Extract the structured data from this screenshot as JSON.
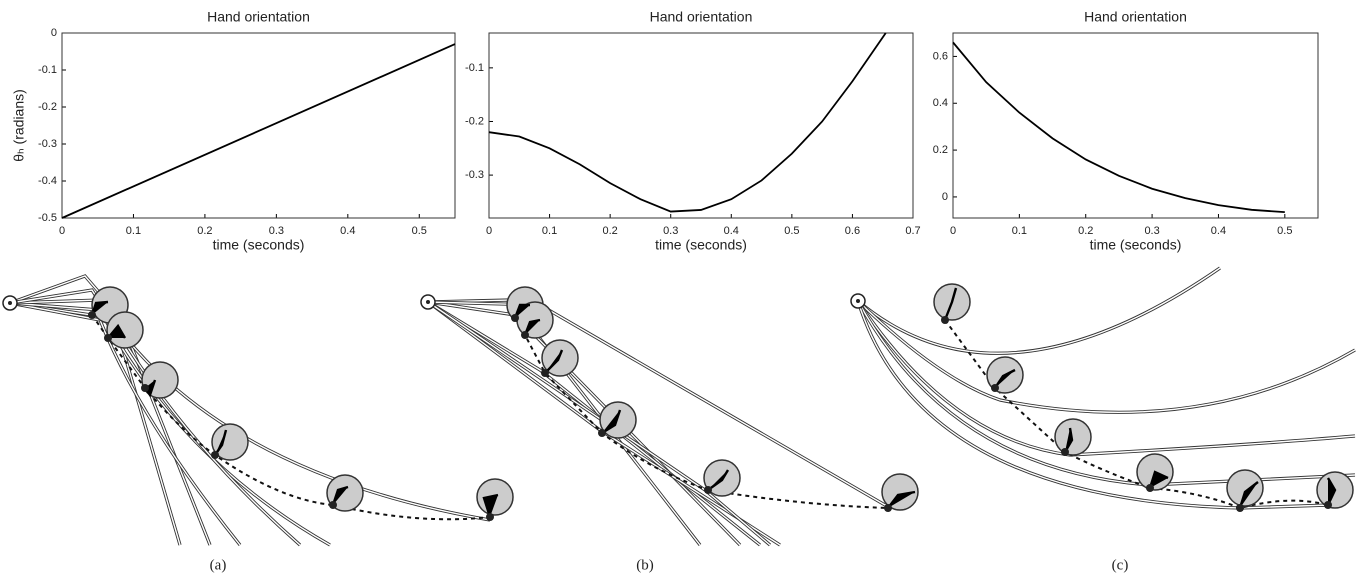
{
  "chart_data": [
    {
      "type": "line",
      "title": "Hand orientation",
      "xlabel": "time (seconds)",
      "ylabel": "θₕ (radians)",
      "x": [
        0,
        0.55
      ],
      "values": [
        -0.5,
        -0.03
      ],
      "color": "#000000",
      "xlim": [
        0,
        0.55
      ],
      "xticks": [
        0,
        0.1,
        0.2,
        0.3,
        0.4,
        0.5
      ],
      "ylim": [
        -0.5,
        0
      ],
      "yticks": [
        -0.5,
        -0.4,
        -0.3,
        -0.2,
        -0.1,
        0
      ]
    },
    {
      "type": "line",
      "title": "Hand orientation",
      "xlabel": "time (seconds)",
      "x": [
        0,
        0.05,
        0.1,
        0.15,
        0.2,
        0.25,
        0.3,
        0.35,
        0.4,
        0.45,
        0.5,
        0.55,
        0.6,
        0.655
      ],
      "values": [
        -0.22,
        -0.228,
        -0.25,
        -0.28,
        -0.315,
        -0.345,
        -0.368,
        -0.365,
        -0.345,
        -0.31,
        -0.26,
        -0.2,
        -0.125,
        -0.035
      ],
      "color": "#000000",
      "xlim": [
        0,
        0.7
      ],
      "xticks": [
        0,
        0.1,
        0.2,
        0.3,
        0.4,
        0.5,
        0.6,
        0.7
      ],
      "ylim": [
        -0.38,
        -0.035
      ],
      "yticks": [
        -0.3,
        -0.2,
        -0.1
      ]
    },
    {
      "type": "line",
      "title": "Hand orientation",
      "xlabel": "time (seconds)",
      "x": [
        0,
        0.05,
        0.1,
        0.15,
        0.2,
        0.25,
        0.3,
        0.35,
        0.4,
        0.45,
        0.5
      ],
      "values": [
        0.66,
        0.49,
        0.36,
        0.25,
        0.16,
        0.09,
        0.035,
        -0.005,
        -0.035,
        -0.055,
        -0.065
      ],
      "color": "#000000",
      "xlim": [
        0,
        0.55
      ],
      "xticks": [
        0,
        0.1,
        0.2,
        0.3,
        0.4,
        0.5
      ],
      "ylim": [
        -0.09,
        0.7
      ],
      "yticks": [
        0,
        0.2,
        0.4,
        0.6
      ]
    }
  ],
  "captions": [
    "(a)",
    "(b)",
    "(c)"
  ]
}
